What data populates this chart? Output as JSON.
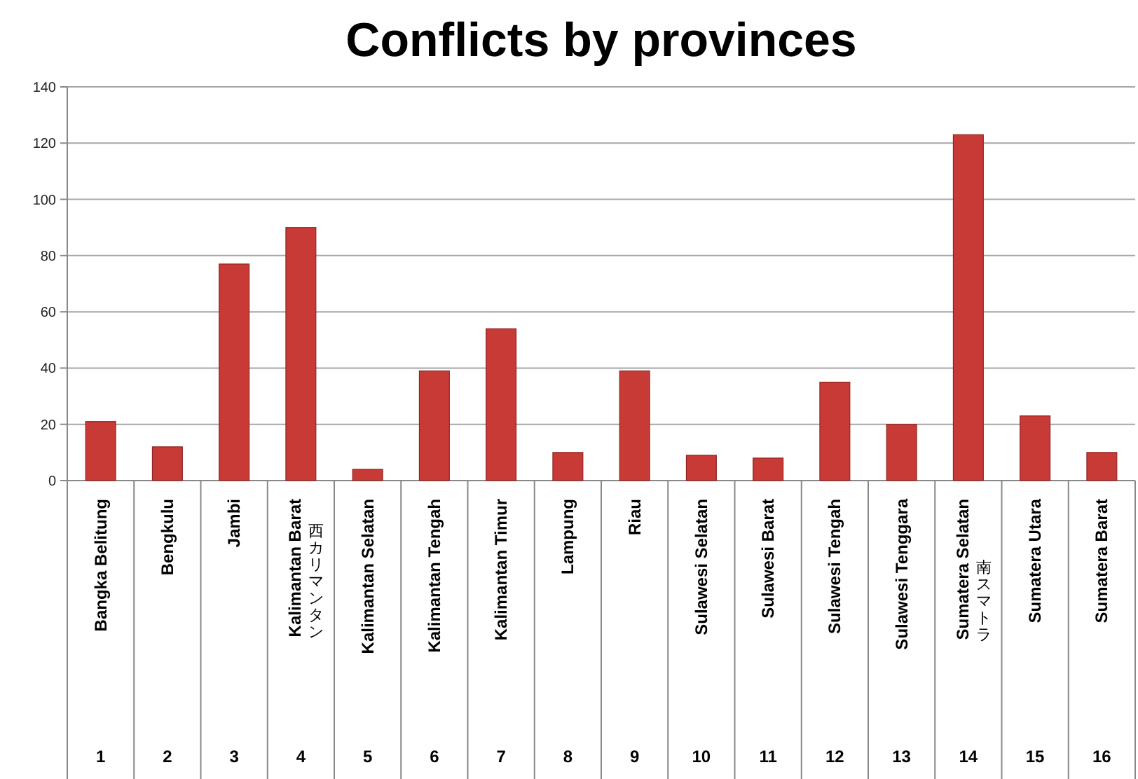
{
  "chart_data": {
    "type": "bar",
    "title": "Conflicts by provinces",
    "categories": [
      "Bangka Belitung",
      "Bengkulu",
      "Jambi",
      "Kalimantan Barat\n西カリマンタン",
      "Kalimantan Selatan",
      "Kalimantan Tengah",
      "Kalimantan Timur",
      "Lampung",
      "Riau",
      "Sulawesi Selatan",
      "Sulawesi Barat",
      "Sulawesi Tengah",
      "Sulawesi Tenggara",
      "Sumatera Selatan\n南スマトラ",
      "Sumatera Utara",
      "Sumatera Barat"
    ],
    "values": [
      21,
      12,
      77,
      90,
      4,
      39,
      54,
      10,
      39,
      9,
      8,
      35,
      20,
      123,
      23,
      10
    ],
    "color": "#c83a36",
    "annotations": [
      "1",
      "2",
      "3",
      "4",
      "5",
      "6",
      "7",
      "8",
      "9",
      "10",
      "11",
      "12",
      "13",
      "14",
      "15",
      "16"
    ],
    "ylim": [
      0,
      140
    ],
    "yticks": [
      0,
      20,
      40,
      60,
      80,
      100,
      120,
      140
    ],
    "grid": "y"
  }
}
